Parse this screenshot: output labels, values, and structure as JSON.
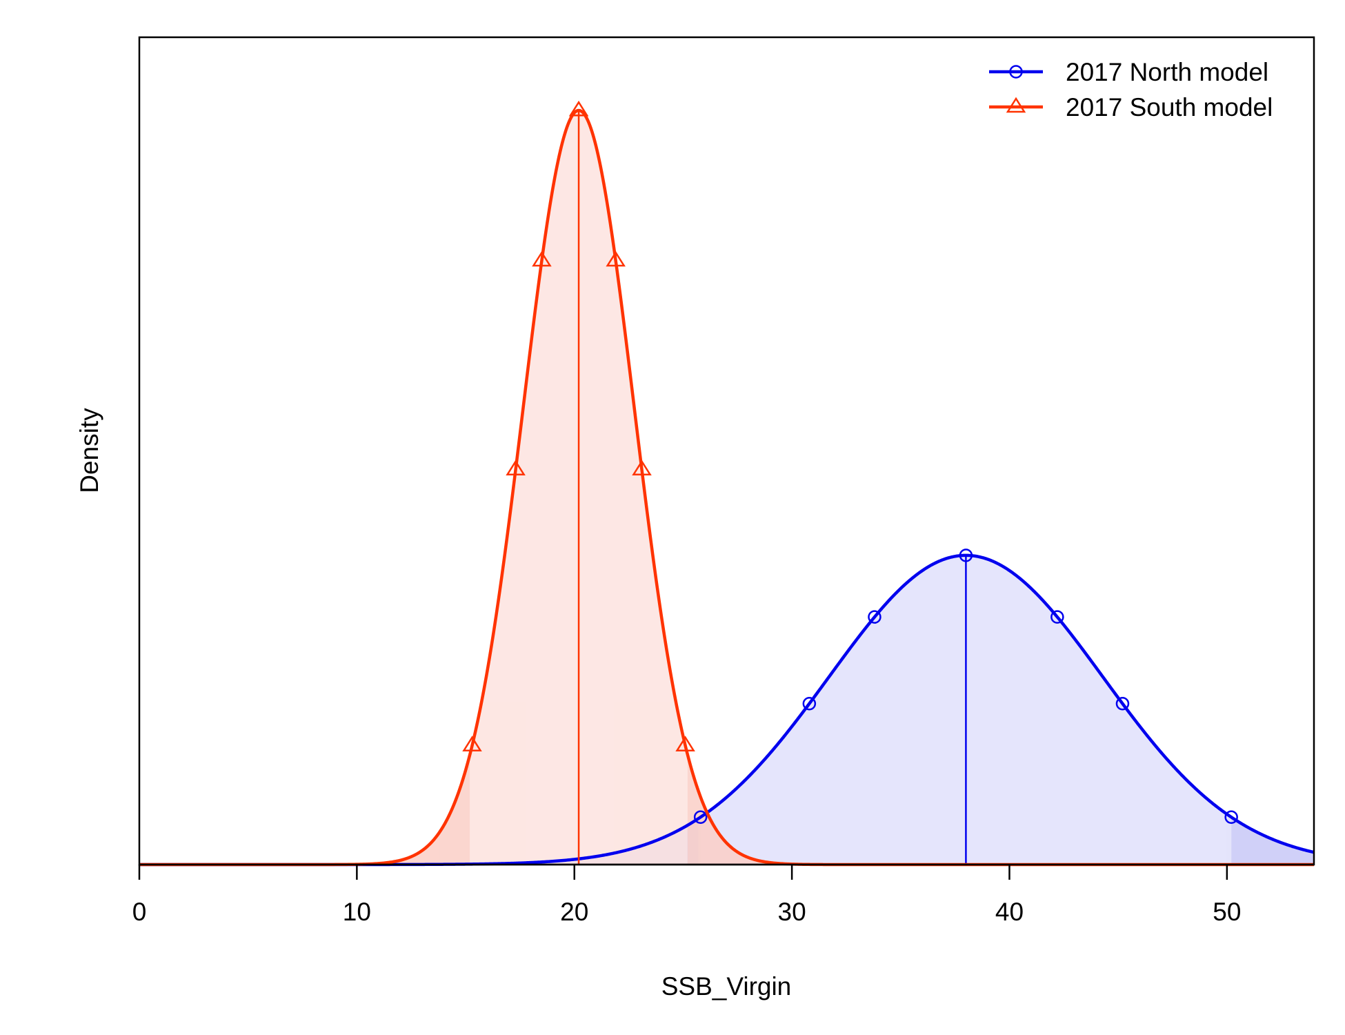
{
  "chart_data": {
    "type": "area",
    "xlabel": "SSB_Virgin",
    "ylabel": "Density",
    "xlim": [
      0,
      54
    ],
    "x_ticks": [
      0,
      10,
      20,
      30,
      40,
      50
    ],
    "y_ticks_shown": false,
    "grid": false,
    "legend_position": "top-right",
    "series": [
      {
        "name": "2017 North model",
        "distribution": "normal",
        "color": "#0000ee",
        "fill": "#e0e0fb",
        "fill_tail": "#c8c8f7",
        "marker": "circle",
        "median": 38.0,
        "sd": 6.3,
        "peak_density_relative": 0.41,
        "interval_95": [
          25.7,
          50.2
        ],
        "marker_x": [
          25.8,
          30.8,
          33.8,
          38.0,
          42.2,
          45.2,
          50.2
        ]
      },
      {
        "name": "2017 South model",
        "distribution": "normal",
        "color": "#ff3300",
        "fill": "#fde3df",
        "fill_tail": "#fbcfc7",
        "marker": "triangle",
        "median": 20.2,
        "sd": 2.55,
        "peak_density_relative": 1.0,
        "interval_95": [
          15.2,
          25.2
        ],
        "marker_x": [
          15.3,
          17.3,
          18.5,
          20.2,
          21.9,
          23.1,
          25.1
        ]
      }
    ]
  }
}
